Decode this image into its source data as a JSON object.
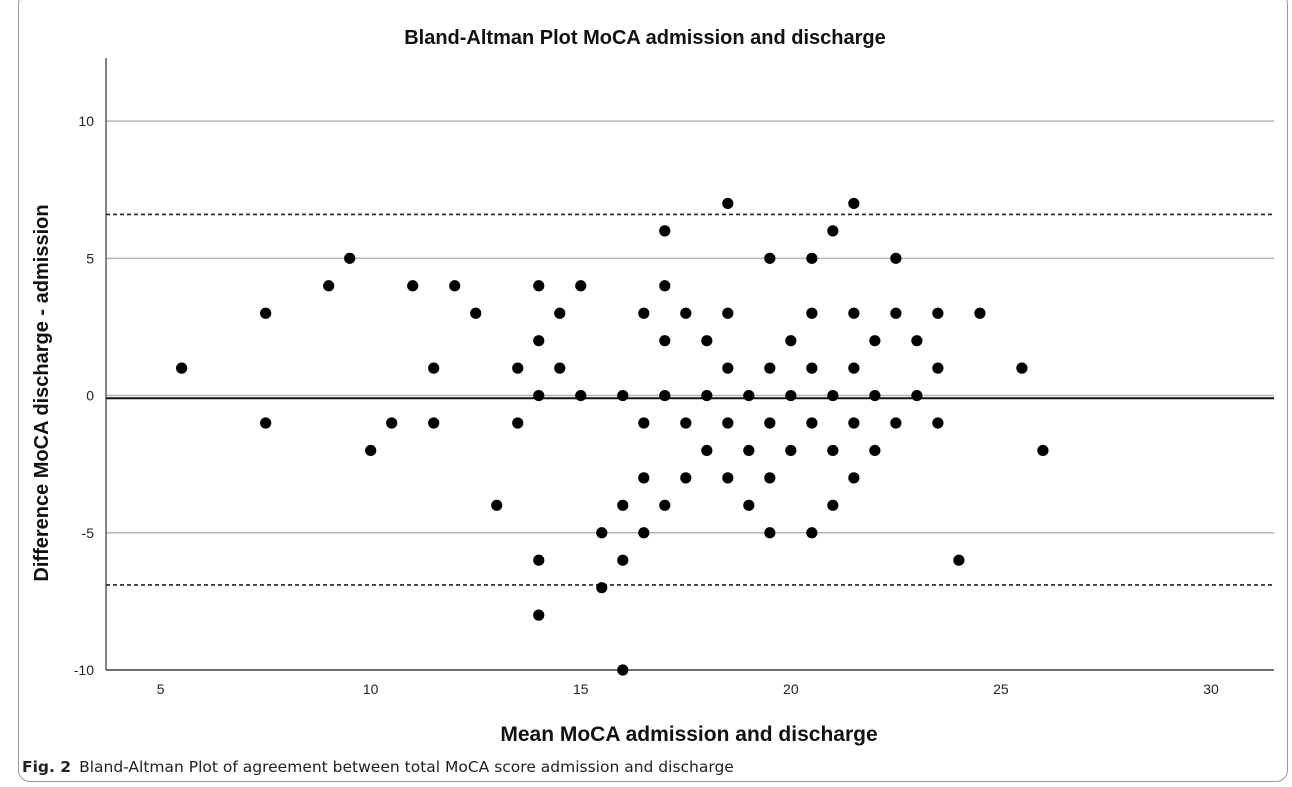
{
  "figure_caption": {
    "label": "Fig. 2",
    "text": "Bland-Altman Plot of agreement between total MoCA score admission and discharge"
  },
  "chart_data": {
    "type": "scatter",
    "title": "Bland-Altman Plot MoCA admission and discharge",
    "xlabel": "Mean MoCA admission and discharge",
    "ylabel": "Difference MoCA discharge - admission",
    "xlim": [
      3.7,
      31.5
    ],
    "ylim": [
      -10,
      12.3
    ],
    "x_ticks": [
      5,
      10,
      15,
      20,
      25,
      30
    ],
    "y_ticks": [
      -10,
      -5,
      0,
      5,
      10
    ],
    "grid": "horizontal",
    "reference_lines": {
      "mean_difference": -0.1,
      "upper_limit_of_agreement": 6.6,
      "lower_limit_of_agreement": -6.9
    },
    "points": [
      [
        5.5,
        1
      ],
      [
        7.5,
        3
      ],
      [
        7.5,
        -1
      ],
      [
        9,
        4
      ],
      [
        9.5,
        5
      ],
      [
        10,
        -2
      ],
      [
        10.5,
        -1
      ],
      [
        11,
        4
      ],
      [
        11.5,
        1
      ],
      [
        11.5,
        -1
      ],
      [
        12,
        4
      ],
      [
        12.5,
        3
      ],
      [
        13,
        -4
      ],
      [
        13.5,
        1
      ],
      [
        13.5,
        -1
      ],
      [
        14,
        4
      ],
      [
        14,
        2
      ],
      [
        14,
        0
      ],
      [
        14,
        -6
      ],
      [
        14,
        -8
      ],
      [
        14.5,
        3
      ],
      [
        14.5,
        1
      ],
      [
        15,
        4
      ],
      [
        15,
        0
      ],
      [
        15.5,
        -5
      ],
      [
        15.5,
        -7
      ],
      [
        16,
        0
      ],
      [
        16,
        -4
      ],
      [
        16,
        -6
      ],
      [
        16,
        -10
      ],
      [
        16.5,
        3
      ],
      [
        16.5,
        -1
      ],
      [
        16.5,
        -3
      ],
      [
        16.5,
        -5
      ],
      [
        17,
        6
      ],
      [
        17,
        4
      ],
      [
        17,
        2
      ],
      [
        17,
        0
      ],
      [
        17,
        -4
      ],
      [
        17.5,
        3
      ],
      [
        17.5,
        -1
      ],
      [
        17.5,
        -3
      ],
      [
        18,
        2
      ],
      [
        18,
        0
      ],
      [
        18,
        -2
      ],
      [
        18.5,
        7
      ],
      [
        18.5,
        3
      ],
      [
        18.5,
        1
      ],
      [
        18.5,
        -1
      ],
      [
        18.5,
        -3
      ],
      [
        19,
        0
      ],
      [
        19,
        -2
      ],
      [
        19,
        -4
      ],
      [
        19.5,
        5
      ],
      [
        19.5,
        1
      ],
      [
        19.5,
        -1
      ],
      [
        19.5,
        -3
      ],
      [
        19.5,
        -5
      ],
      [
        20,
        2
      ],
      [
        20,
        0
      ],
      [
        20,
        -2
      ],
      [
        20.5,
        5
      ],
      [
        20.5,
        3
      ],
      [
        20.5,
        1
      ],
      [
        20.5,
        -1
      ],
      [
        20.5,
        -5
      ],
      [
        21,
        6
      ],
      [
        21,
        0
      ],
      [
        21,
        -2
      ],
      [
        21,
        -4
      ],
      [
        21.5,
        7
      ],
      [
        21.5,
        3
      ],
      [
        21.5,
        1
      ],
      [
        21.5,
        -1
      ],
      [
        21.5,
        -3
      ],
      [
        22,
        2
      ],
      [
        22,
        0
      ],
      [
        22,
        -2
      ],
      [
        22.5,
        5
      ],
      [
        22.5,
        3
      ],
      [
        22.5,
        -1
      ],
      [
        23,
        2
      ],
      [
        23,
        0
      ],
      [
        23.5,
        3
      ],
      [
        23.5,
        1
      ],
      [
        23.5,
        -1
      ],
      [
        24,
        -6
      ],
      [
        24.5,
        3
      ],
      [
        25.5,
        1
      ],
      [
        26,
        -2
      ]
    ]
  }
}
